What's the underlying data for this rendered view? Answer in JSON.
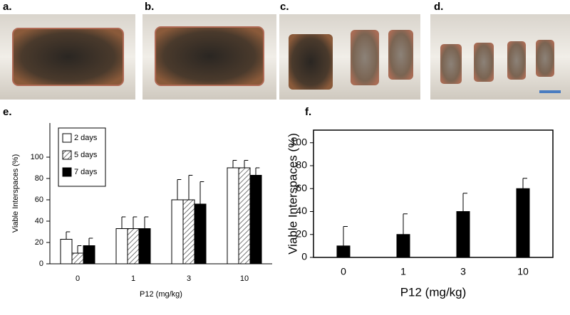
{
  "panel_labels": [
    "a.",
    "b.",
    "c.",
    "d."
  ],
  "chart_data": [
    {
      "type": "bar",
      "label": "e.",
      "xlabel": "P12 (mg/kg)",
      "ylabel": "Viable Interspaces (%)",
      "categories": [
        "0",
        "1",
        "3",
        "10"
      ],
      "series": [
        {
          "name": "2 days",
          "color": "#ffffff",
          "values": [
            23,
            33,
            60,
            90
          ],
          "errors": [
            7,
            11,
            19,
            7
          ]
        },
        {
          "name": "5 days",
          "color": "#ffffff",
          "pattern": "hatch",
          "values": [
            10,
            33,
            60,
            90
          ],
          "errors": [
            7,
            11,
            23,
            7
          ]
        },
        {
          "name": "7 days",
          "color": "#000000",
          "values": [
            17,
            33,
            56,
            83
          ],
          "errors": [
            7,
            11,
            21,
            7
          ]
        }
      ],
      "ylim": [
        0,
        132
      ],
      "yticks": [
        0,
        20,
        40,
        60,
        80,
        100
      ],
      "legend": "upper left",
      "frame": false
    },
    {
      "type": "bar",
      "label": "f.",
      "xlabel": "P12 (mg/kg)",
      "ylabel": "Viable Interspaces (%)",
      "categories": [
        "0",
        "1",
        "3",
        "10"
      ],
      "series": [
        {
          "color": "#000000",
          "values": [
            10,
            20,
            40,
            60
          ],
          "errors": [
            17,
            18,
            16,
            9
          ]
        }
      ],
      "ylim": [
        0,
        111
      ],
      "yticks": [
        0,
        20,
        40,
        60,
        80,
        100
      ],
      "frame": true
    }
  ]
}
